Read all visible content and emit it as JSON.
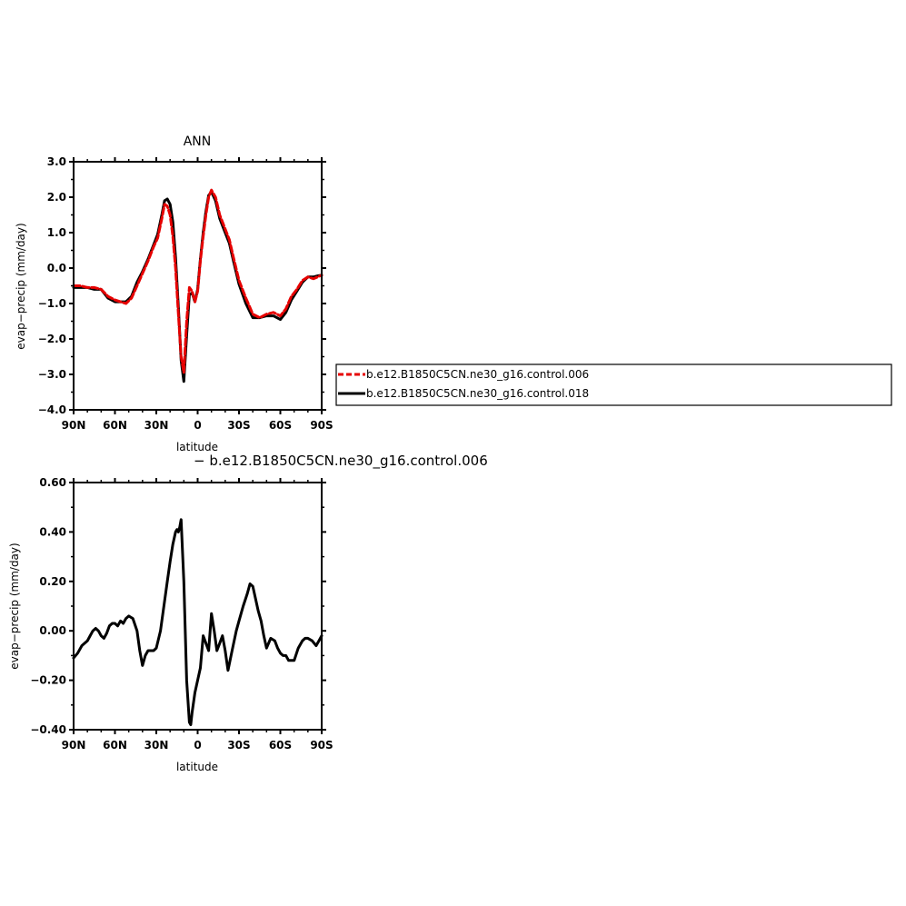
{
  "colors": {
    "series_006": "#e60000",
    "series_018": "#000000",
    "axis": "#000000"
  },
  "chart_data": [
    {
      "type": "line",
      "title": "ANN",
      "xlabel": "latitude",
      "ylabel": "evap−precip (mm/day)",
      "xlim": [
        90,
        -90
      ],
      "ylim": [
        -4.0,
        3.0
      ],
      "xtick_values": [
        90,
        60,
        30,
        0,
        -30,
        -60,
        -90
      ],
      "xtick_labels": [
        "90N",
        "60N",
        "30N",
        "0",
        "30S",
        "60S",
        "90S"
      ],
      "ytick_values": [
        3,
        2,
        1,
        0,
        -1,
        -2,
        -3,
        -4
      ],
      "ytick_labels": [
        "3.0",
        "2.0",
        "1.0",
        "0.0",
        "−1.0",
        "−2.0",
        "−3.0",
        "−4.0"
      ],
      "legend": "right",
      "x": [
        90,
        85,
        80,
        75,
        70,
        65,
        60,
        56,
        52,
        48,
        44,
        40,
        36,
        32,
        29,
        26,
        24,
        22,
        20,
        18,
        16,
        14,
        12,
        10,
        8,
        6,
        4,
        2,
        0,
        -2,
        -4,
        -6,
        -8,
        -10,
        -13,
        -16,
        -20,
        -23,
        -26,
        -30,
        -35,
        -40,
        -45,
        -50,
        -55,
        -60,
        -64,
        -68,
        -72,
        -76,
        -80,
        -84,
        -87,
        -90
      ],
      "series": [
        {
          "name": "b.e12.B1850C5CN.ne30_g16.control.006",
          "values": [
            -0.5,
            -0.5,
            -0.55,
            -0.55,
            -0.6,
            -0.8,
            -0.9,
            -0.95,
            -1.0,
            -0.85,
            -0.5,
            -0.15,
            0.2,
            0.6,
            0.85,
            1.4,
            1.8,
            1.75,
            1.5,
            0.9,
            0.0,
            -1.3,
            -2.5,
            -2.95,
            -1.5,
            -0.55,
            -0.65,
            -0.95,
            -0.65,
            0.2,
            0.9,
            1.5,
            2.0,
            2.2,
            2.0,
            1.5,
            1.1,
            0.8,
            0.3,
            -0.35,
            -0.85,
            -1.3,
            -1.4,
            -1.3,
            -1.25,
            -1.35,
            -1.15,
            -0.8,
            -0.6,
            -0.35,
            -0.25,
            -0.3,
            -0.25,
            -0.2
          ]
        },
        {
          "name": "b.e12.B1850C5CN.ne30_g16.control.018",
          "values": [
            -0.55,
            -0.55,
            -0.55,
            -0.6,
            -0.6,
            -0.85,
            -0.95,
            -0.95,
            -0.95,
            -0.8,
            -0.4,
            -0.1,
            0.25,
            0.65,
            0.95,
            1.5,
            1.9,
            1.95,
            1.8,
            1.3,
            0.3,
            -1.1,
            -2.6,
            -3.2,
            -1.9,
            -0.75,
            -0.7,
            -0.95,
            -0.6,
            0.25,
            1.0,
            1.6,
            2.05,
            2.15,
            1.9,
            1.4,
            1.0,
            0.7,
            0.2,
            -0.45,
            -1.0,
            -1.4,
            -1.4,
            -1.35,
            -1.35,
            -1.45,
            -1.25,
            -0.9,
            -0.65,
            -0.4,
            -0.25,
            -0.25,
            -0.22,
            -0.2
          ]
        }
      ]
    },
    {
      "type": "line",
      "title": "− b.e12.B1850C5CN.ne30_g16.control.006",
      "xlabel": "latitude",
      "ylabel": "evap−precip (mm/day)",
      "xlim": [
        90,
        -90
      ],
      "ylim": [
        -0.4,
        0.6
      ],
      "xtick_values": [
        90,
        60,
        30,
        0,
        -30,
        -60,
        -90
      ],
      "xtick_labels": [
        "90N",
        "60N",
        "30N",
        "0",
        "30S",
        "60S",
        "90S"
      ],
      "ytick_values": [
        0.6,
        0.4,
        0.2,
        0,
        -0.2,
        -0.4
      ],
      "ytick_labels": [
        "0.60",
        "0.40",
        "0.20",
        "0.00",
        "−0.20",
        "−0.40"
      ],
      "x": [
        90,
        87,
        84,
        80,
        78,
        76,
        74,
        72,
        70,
        68,
        66,
        64,
        62,
        60,
        58,
        56,
        54,
        52,
        50,
        47,
        44,
        42,
        40,
        38,
        36,
        34,
        32,
        30,
        27,
        24,
        22,
        20,
        18,
        16,
        15,
        14,
        13,
        12,
        10,
        8,
        6,
        5,
        4,
        2,
        0,
        -2,
        -4,
        -6,
        -8,
        -10,
        -12,
        -14,
        -16,
        -18,
        -20,
        -22,
        -25,
        -28,
        -30,
        -33,
        -36,
        -38,
        -40,
        -42,
        -44,
        -46,
        -48,
        -50,
        -53,
        -56,
        -58,
        -60,
        -62,
        -64,
        -66,
        -68,
        -70,
        -73,
        -76,
        -78,
        -80,
        -83,
        -86,
        -88,
        -90
      ],
      "series": [
        {
          "name": "",
          "values": [
            -0.11,
            -0.09,
            -0.06,
            -0.04,
            -0.02,
            0.0,
            0.01,
            0.0,
            -0.02,
            -0.03,
            -0.01,
            0.02,
            0.03,
            0.03,
            0.02,
            0.04,
            0.03,
            0.05,
            0.06,
            0.05,
            0.0,
            -0.08,
            -0.14,
            -0.1,
            -0.08,
            -0.08,
            -0.08,
            -0.07,
            0.0,
            0.12,
            0.2,
            0.28,
            0.35,
            0.4,
            0.41,
            0.4,
            0.42,
            0.45,
            0.2,
            -0.2,
            -0.37,
            -0.38,
            -0.33,
            -0.25,
            -0.2,
            -0.15,
            -0.02,
            -0.05,
            -0.08,
            0.07,
            0.0,
            -0.08,
            -0.05,
            -0.02,
            -0.08,
            -0.16,
            -0.08,
            0.0,
            0.04,
            0.1,
            0.15,
            0.19,
            0.18,
            0.13,
            0.08,
            0.04,
            -0.02,
            -0.07,
            -0.03,
            -0.04,
            -0.07,
            -0.09,
            -0.1,
            -0.1,
            -0.12,
            -0.12,
            -0.12,
            -0.07,
            -0.04,
            -0.03,
            -0.03,
            -0.04,
            -0.06,
            -0.04,
            -0.02
          ]
        }
      ]
    }
  ]
}
